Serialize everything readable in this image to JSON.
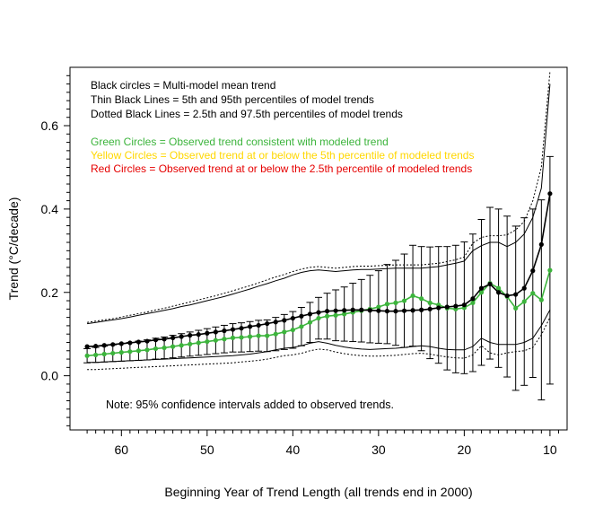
{
  "chart_data": {
    "type": "line",
    "title": "",
    "xlabel": "Beginning Year of Trend Length (all trends end in 2000)",
    "ylabel": "Trend (°C/decade)",
    "xlim": [
      66,
      8
    ],
    "ylim": [
      -0.13,
      0.74
    ],
    "x_ticks": [
      60,
      50,
      40,
      30,
      20,
      10
    ],
    "y_ticks": [
      0.0,
      0.2,
      0.4,
      0.6
    ],
    "x_tick_labels": [
      "60",
      "50",
      "40",
      "30",
      "20",
      "10"
    ],
    "y_tick_labels": [
      "0.0",
      "0.2",
      "0.4",
      "0.6"
    ],
    "x": [
      64,
      63,
      62,
      61,
      60,
      59,
      58,
      57,
      56,
      55,
      54,
      53,
      52,
      51,
      50,
      49,
      48,
      47,
      46,
      45,
      44,
      43,
      42,
      41,
      40,
      39,
      38,
      37,
      36,
      35,
      34,
      33,
      32,
      31,
      30,
      29,
      28,
      27,
      26,
      25,
      24,
      23,
      22,
      21,
      20,
      19,
      18,
      17,
      16,
      15,
      14,
      13,
      12,
      11,
      10
    ],
    "series": [
      {
        "name": "Multi-model mean trend",
        "style": "black-circles",
        "color": "#000000",
        "values": [
          0.07,
          0.071,
          0.073,
          0.075,
          0.077,
          0.079,
          0.081,
          0.083,
          0.086,
          0.088,
          0.091,
          0.094,
          0.097,
          0.099,
          0.102,
          0.105,
          0.108,
          0.111,
          0.114,
          0.118,
          0.121,
          0.125,
          0.129,
          0.133,
          0.138,
          0.143,
          0.148,
          0.152,
          0.155,
          0.156,
          0.157,
          0.158,
          0.158,
          0.157,
          0.156,
          0.155,
          0.155,
          0.156,
          0.157,
          0.158,
          0.16,
          0.163,
          0.165,
          0.167,
          0.17,
          0.185,
          0.21,
          0.22,
          0.2,
          0.192,
          0.195,
          0.21,
          0.252,
          0.315,
          0.437
        ]
      },
      {
        "name": "5th percentile of model trends",
        "style": "thin-line",
        "color": "#000000",
        "values": [
          0.032,
          0.032,
          0.033,
          0.034,
          0.035,
          0.036,
          0.037,
          0.038,
          0.039,
          0.04,
          0.041,
          0.042,
          0.043,
          0.044,
          0.045,
          0.046,
          0.047,
          0.048,
          0.05,
          0.052,
          0.055,
          0.058,
          0.062,
          0.066,
          0.068,
          0.072,
          0.078,
          0.082,
          0.078,
          0.073,
          0.069,
          0.066,
          0.064,
          0.063,
          0.064,
          0.065,
          0.066,
          0.068,
          0.07,
          0.072,
          0.07,
          0.066,
          0.063,
          0.062,
          0.062,
          0.07,
          0.09,
          0.08,
          0.075,
          0.075,
          0.075,
          0.08,
          0.09,
          0.12,
          0.158
        ]
      },
      {
        "name": "95th percentile of model trends",
        "style": "thin-line",
        "color": "#000000",
        "values": [
          0.125,
          0.128,
          0.131,
          0.134,
          0.137,
          0.141,
          0.145,
          0.149,
          0.153,
          0.157,
          0.161,
          0.166,
          0.17,
          0.175,
          0.18,
          0.185,
          0.19,
          0.196,
          0.202,
          0.208,
          0.215,
          0.221,
          0.228,
          0.234,
          0.242,
          0.248,
          0.252,
          0.254,
          0.252,
          0.25,
          0.252,
          0.254,
          0.255,
          0.255,
          0.256,
          0.257,
          0.258,
          0.258,
          0.258,
          0.258,
          0.26,
          0.262,
          0.266,
          0.27,
          0.275,
          0.3,
          0.312,
          0.32,
          0.32,
          0.31,
          0.32,
          0.34,
          0.38,
          0.45,
          0.7
        ]
      },
      {
        "name": "2.5th percentile of model trends",
        "style": "dotted-line",
        "color": "#000000",
        "values": [
          0.015,
          0.015,
          0.016,
          0.017,
          0.018,
          0.019,
          0.02,
          0.021,
          0.022,
          0.023,
          0.024,
          0.025,
          0.026,
          0.027,
          0.028,
          0.029,
          0.03,
          0.031,
          0.033,
          0.035,
          0.037,
          0.04,
          0.044,
          0.048,
          0.05,
          0.054,
          0.06,
          0.064,
          0.062,
          0.057,
          0.053,
          0.05,
          0.048,
          0.047,
          0.047,
          0.048,
          0.049,
          0.051,
          0.053,
          0.054,
          0.052,
          0.048,
          0.045,
          0.043,
          0.042,
          0.05,
          0.072,
          0.055,
          0.05,
          0.055,
          0.058,
          0.06,
          0.068,
          0.098,
          0.14
        ]
      },
      {
        "name": "97.5th percentile of model trends",
        "style": "dotted-line",
        "color": "#000000",
        "values": [
          0.128,
          0.131,
          0.134,
          0.137,
          0.141,
          0.145,
          0.149,
          0.153,
          0.158,
          0.162,
          0.167,
          0.172,
          0.177,
          0.182,
          0.187,
          0.192,
          0.198,
          0.204,
          0.21,
          0.216,
          0.223,
          0.23,
          0.237,
          0.243,
          0.25,
          0.256,
          0.26,
          0.262,
          0.26,
          0.258,
          0.26,
          0.262,
          0.263,
          0.263,
          0.264,
          0.265,
          0.266,
          0.266,
          0.266,
          0.266,
          0.268,
          0.27,
          0.274,
          0.278,
          0.285,
          0.318,
          0.332,
          0.336,
          0.336,
          0.338,
          0.35,
          0.37,
          0.42,
          0.5,
          0.73
        ]
      },
      {
        "name": "Observed trend",
        "style": "observed-circles",
        "color": "#3cb43c",
        "values": [
          0.048,
          0.05,
          0.052,
          0.054,
          0.056,
          0.058,
          0.06,
          0.062,
          0.065,
          0.067,
          0.07,
          0.073,
          0.076,
          0.079,
          0.082,
          0.085,
          0.088,
          0.091,
          0.092,
          0.094,
          0.096,
          0.096,
          0.1,
          0.105,
          0.11,
          0.118,
          0.128,
          0.138,
          0.143,
          0.145,
          0.148,
          0.152,
          0.156,
          0.16,
          0.165,
          0.172,
          0.175,
          0.18,
          0.192,
          0.185,
          0.175,
          0.17,
          0.162,
          0.16,
          0.163,
          0.175,
          0.2,
          0.222,
          0.21,
          0.19,
          0.162,
          0.178,
          0.198,
          0.182,
          0.253
        ]
      }
    ],
    "observed_ci_lower": [
      0.031,
      0.032,
      0.033,
      0.034,
      0.035,
      0.036,
      0.037,
      0.038,
      0.04,
      0.041,
      0.043,
      0.045,
      0.047,
      0.049,
      0.051,
      0.053,
      0.055,
      0.057,
      0.057,
      0.058,
      0.059,
      0.058,
      0.06,
      0.063,
      0.066,
      0.072,
      0.08,
      0.088,
      0.088,
      0.084,
      0.083,
      0.082,
      0.081,
      0.079,
      0.078,
      0.077,
      0.073,
      0.068,
      0.071,
      0.06,
      0.041,
      0.03,
      0.014,
      0.007,
      0.005,
      0.01,
      0.025,
      0.04,
      0.02,
      -0.003,
      -0.035,
      -0.023,
      -0.004,
      -0.058,
      -0.02
    ],
    "observed_ci_upper": [
      0.065,
      0.068,
      0.071,
      0.074,
      0.077,
      0.08,
      0.083,
      0.086,
      0.09,
      0.093,
      0.097,
      0.101,
      0.105,
      0.109,
      0.113,
      0.117,
      0.121,
      0.125,
      0.127,
      0.13,
      0.133,
      0.134,
      0.14,
      0.147,
      0.154,
      0.164,
      0.176,
      0.188,
      0.198,
      0.206,
      0.213,
      0.222,
      0.231,
      0.241,
      0.252,
      0.267,
      0.277,
      0.292,
      0.313,
      0.31,
      0.309,
      0.31,
      0.31,
      0.313,
      0.321,
      0.34,
      0.375,
      0.404,
      0.4,
      0.383,
      0.359,
      0.379,
      0.4,
      0.422,
      0.526
    ],
    "legend": {
      "position": "top-left",
      "lines": [
        {
          "text": "Black circles = Multi-model mean trend",
          "color": "#000000"
        },
        {
          "text": "Thin Black Lines = 5th and 95th percentiles of model trends",
          "color": "#000000"
        },
        {
          "text": "Dotted Black Lines = 2.5th and 97.5th percentiles of model trends",
          "color": "#000000"
        },
        {
          "text": "Green Circles = Observed trend consistent with modeled trend",
          "color": "#3cb43c"
        },
        {
          "text": "Yellow Circles = Observed trend at or below the 5th percentile of modeled trends",
          "color": "#ffd700"
        },
        {
          "text": "Red Circles = Observed trend at or below the 2.5th percentile of modeled trends",
          "color": "#e60000"
        }
      ]
    },
    "annotation": "Note: 95% confidence intervals added to observed trends."
  }
}
